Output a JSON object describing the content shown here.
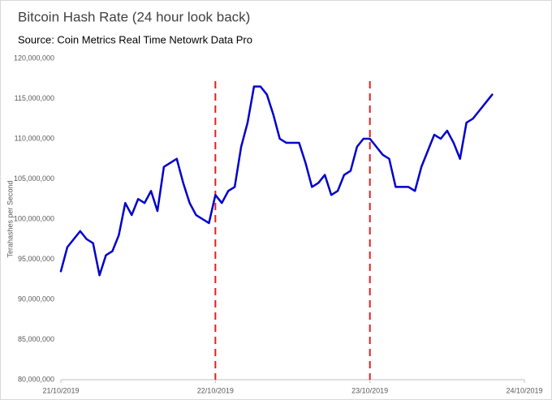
{
  "chart_data": {
    "type": "line",
    "title": "Bitcoin Hash Rate (24 hour look back)",
    "subtitle": "Source: Coin Metrics Real Time Netowrk Data Pro",
    "y_label": "Terahashes per Second",
    "categories": [
      "21/10/2019",
      null,
      null,
      null,
      null,
      null,
      null,
      null,
      null,
      null,
      null,
      null,
      null,
      null,
      null,
      null,
      null,
      null,
      null,
      null,
      null,
      null,
      null,
      null,
      "22/10/2019",
      null,
      null,
      null,
      null,
      null,
      null,
      null,
      null,
      null,
      null,
      null,
      null,
      null,
      null,
      null,
      null,
      null,
      null,
      null,
      null,
      null,
      null,
      null,
      "23/10/2019",
      null,
      null,
      null,
      null,
      null,
      null,
      null,
      null,
      null,
      null,
      null,
      null,
      null,
      null,
      null,
      null,
      null,
      null,
      null,
      null,
      null,
      null,
      null,
      "24/10/2019"
    ],
    "values": [
      93500000,
      96500000,
      97500000,
      98500000,
      97500000,
      97000000,
      93000000,
      95500000,
      96000000,
      98000000,
      102000000,
      100500000,
      102500000,
      102000000,
      103500000,
      101000000,
      106500000,
      107000000,
      107500000,
      104500000,
      102000000,
      100500000,
      100000000,
      99500000,
      103000000,
      102000000,
      103500000,
      104000000,
      109000000,
      112000000,
      116500000,
      116500000,
      115500000,
      113000000,
      110000000,
      109500000,
      109500000,
      109500000,
      107000000,
      104000000,
      104500000,
      105500000,
      103000000,
      103500000,
      105500000,
      106000000,
      109000000,
      110000000,
      110000000,
      109000000,
      108000000,
      107500000,
      104000000,
      104000000,
      104000000,
      103500000,
      106500000,
      108500000,
      110500000,
      110000000,
      111000000,
      109500000,
      107500000,
      112000000,
      112500000,
      113500000,
      114500000,
      115500000,
      null,
      null,
      null,
      null,
      null
    ],
    "color": "#0000cc",
    "ylim": [
      80000000,
      120000000
    ],
    "yticks": [
      {
        "value": 80000000,
        "label": "80,000,000"
      },
      {
        "value": 85000000,
        "label": "85,000,000"
      },
      {
        "value": 90000000,
        "label": "90,000,000"
      },
      {
        "value": 95000000,
        "label": "95,000,000"
      },
      {
        "value": 100000000,
        "label": "100,000,000"
      },
      {
        "value": 105000000,
        "label": "105,000,000"
      },
      {
        "value": 110000000,
        "label": "110,000,000"
      },
      {
        "value": 115000000,
        "label": "115,000,000"
      },
      {
        "value": 120000000,
        "label": "120,000,000"
      }
    ],
    "grid": false,
    "reference_lines": {
      "color": "#e02020",
      "at": [
        "22/10/2019",
        "23/10/2019"
      ]
    }
  }
}
